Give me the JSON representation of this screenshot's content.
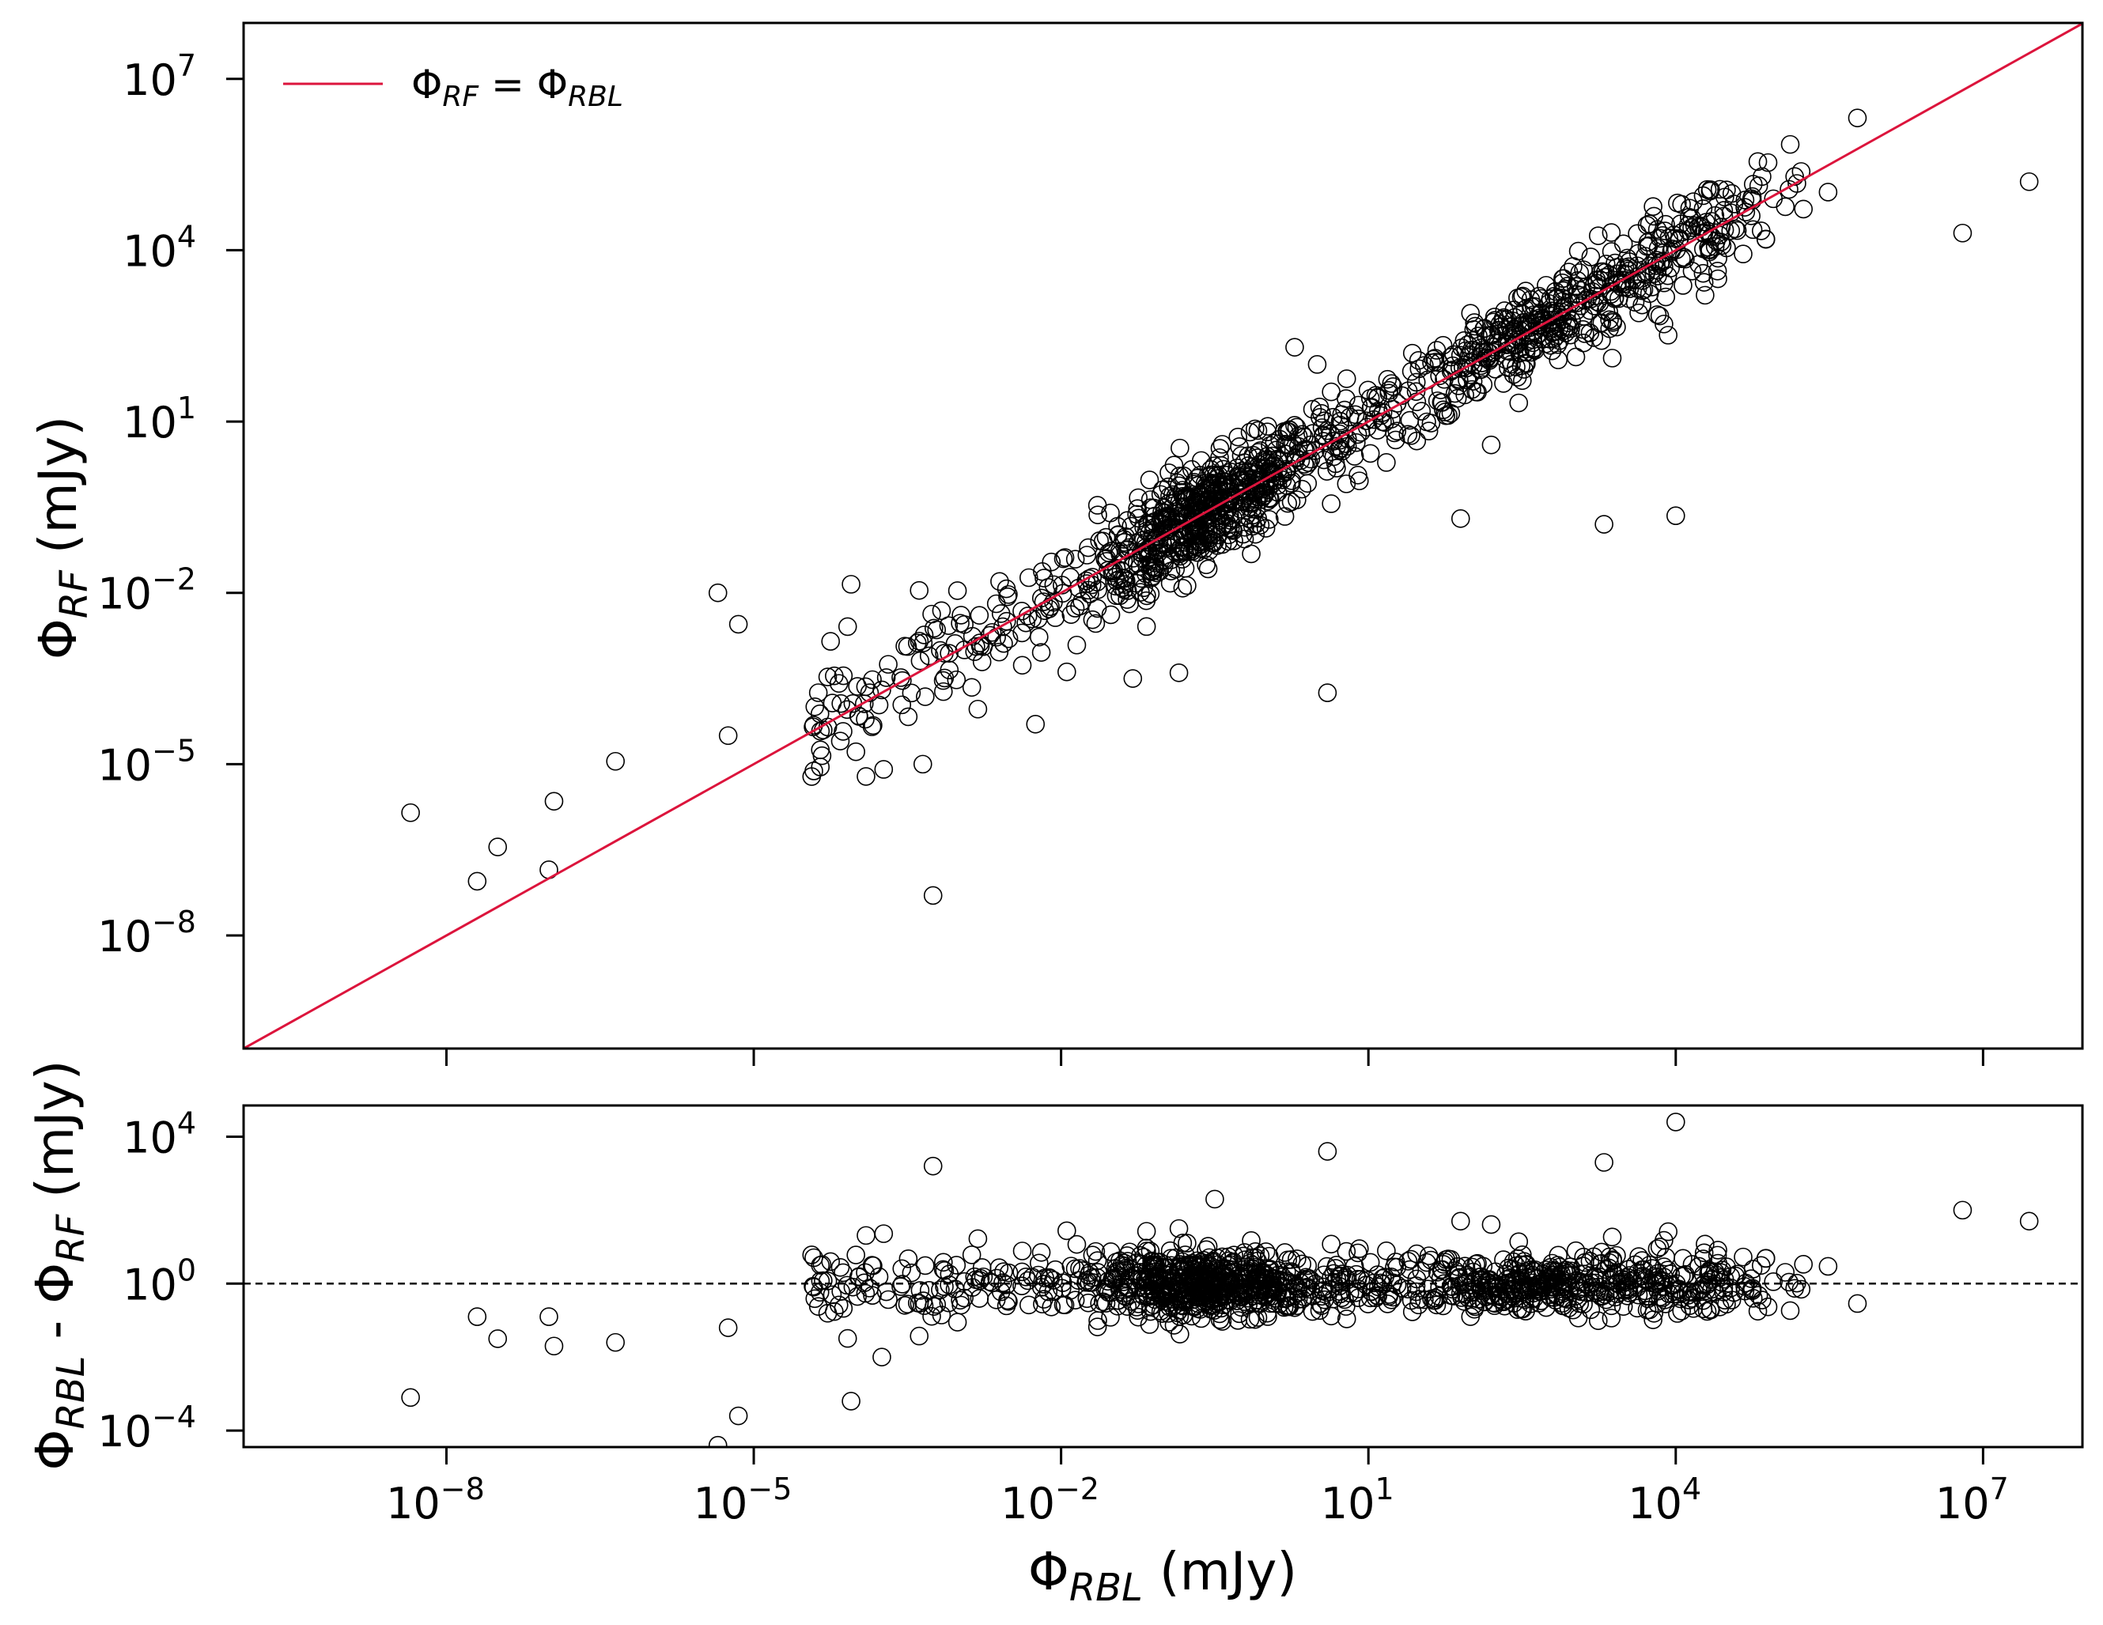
{
  "chart_data": [
    {
      "type": "scatter",
      "panel": "top",
      "xscale": "log",
      "yscale": "log",
      "xlim_log10": [
        -9.98,
        7.97
      ],
      "ylim_log10": [
        -9.98,
        7.98
      ],
      "xticks": [
        {
          "base": "10",
          "exp": "−8"
        },
        {
          "base": "10",
          "exp": "−5"
        },
        {
          "base": "10",
          "exp": "−2"
        },
        {
          "base": "10",
          "exp": "1"
        },
        {
          "base": "10",
          "exp": "4"
        },
        {
          "base": "10",
          "exp": "7"
        }
      ],
      "xtick_values_log10": [
        -8,
        -5,
        -2,
        1,
        4,
        7
      ],
      "yticks": [
        {
          "base": "10",
          "exp": "−8"
        },
        {
          "base": "10",
          "exp": "−5"
        },
        {
          "base": "10",
          "exp": "−2"
        },
        {
          "base": "10",
          "exp": "1"
        },
        {
          "base": "10",
          "exp": "4"
        },
        {
          "base": "10",
          "exp": "7"
        }
      ],
      "ytick_values_log10": [
        -8,
        -5,
        -2,
        1,
        4,
        7
      ],
      "xlabel": {
        "main": "Φ",
        "sub": "RBL",
        "unit": " (mJy)"
      },
      "ylabel": {
        "main": "Φ",
        "sub": "RF",
        "unit": " (mJy)"
      },
      "legend": {
        "position": "top-left",
        "label": {
          "a": "Φ",
          "a_sub": "RF",
          "eq": " = ",
          "b": "Φ",
          "b_sub": "RBL"
        },
        "color": "#dc143c"
      },
      "reference_line": "y = x",
      "outliers_log10": [
        [
          -8.35,
          -5.85
        ],
        [
          -7.7,
          -7.05
        ],
        [
          -7.5,
          -6.45
        ],
        [
          -7.0,
          -6.85
        ],
        [
          -6.95,
          -5.65
        ],
        [
          -6.35,
          -4.95
        ],
        [
          -5.35,
          -2.0
        ],
        [
          -5.25,
          -4.5
        ],
        [
          -5.15,
          -2.55
        ],
        [
          -4.35,
          -4.75
        ],
        [
          -4.35,
          -5.05
        ],
        [
          -4.25,
          -2.85
        ],
        [
          -4.05,
          -1.85
        ],
        [
          -3.75,
          -3.7
        ],
        [
          -3.25,
          -7.3
        ],
        [
          -3.35,
          -5.0
        ],
        [
          -0.85,
          -3.4
        ],
        [
          -2.25,
          -4.3
        ],
        [
          -2.6,
          -1.8
        ],
        [
          -1.3,
          -3.5
        ],
        [
          -0.5,
          -1.1
        ],
        [
          0.6,
          -3.75
        ],
        [
          1.9,
          -0.7
        ],
        [
          3.3,
          -0.8
        ],
        [
          4.0,
          -0.65
        ],
        [
          0.28,
          2.3
        ],
        [
          0.5,
          2.0
        ],
        [
          6.8,
          4.3
        ],
        [
          7.45,
          5.2
        ]
      ],
      "bulk_trend": "y ≈ x; ~1200 points between x = 10^-4 and 10^6"
    },
    {
      "type": "scatter",
      "panel": "bottom",
      "xscale": "log",
      "yscale": "log",
      "xlim_log10": [
        -9.98,
        7.97
      ],
      "ylim_log10": [
        -4.45,
        4.85
      ],
      "yticks": [
        {
          "base": "10",
          "exp": "−4"
        },
        {
          "base": "10",
          "exp": "0"
        },
        {
          "base": "10",
          "exp": "4"
        }
      ],
      "ytick_values_log10": [
        -4,
        0,
        4
      ],
      "ylabel": {
        "a": "Φ",
        "a_sub": "RBL",
        "mid": " - ",
        "b": "Φ",
        "b_sub": "RF",
        "unit": " (mJy)"
      },
      "reference_line": "y = 10^0 (dashed)",
      "outliers_log10": [
        [
          -8.35,
          -3.1
        ],
        [
          -7.7,
          -0.9
        ],
        [
          -7.5,
          -1.5
        ],
        [
          -7.0,
          -0.9
        ],
        [
          -6.95,
          -1.7
        ],
        [
          -6.35,
          -1.6
        ],
        [
          -5.35,
          -4.4
        ],
        [
          -5.25,
          -1.2
        ],
        [
          -5.15,
          -3.6
        ],
        [
          -4.35,
          0.5
        ],
        [
          -4.25,
          0.6
        ],
        [
          -4.05,
          -3.2
        ],
        [
          -3.75,
          -2.0
        ],
        [
          -3.25,
          3.2
        ],
        [
          -0.85,
          1.5
        ],
        [
          -0.5,
          2.3
        ],
        [
          0.6,
          3.6
        ],
        [
          1.9,
          1.7
        ],
        [
          3.3,
          3.3
        ],
        [
          4.0,
          4.4
        ],
        [
          6.8,
          2.0
        ],
        [
          7.45,
          1.7
        ]
      ],
      "bulk_trend": "ratio ≈ 10^0 with scatter ±1 dex"
    }
  ]
}
